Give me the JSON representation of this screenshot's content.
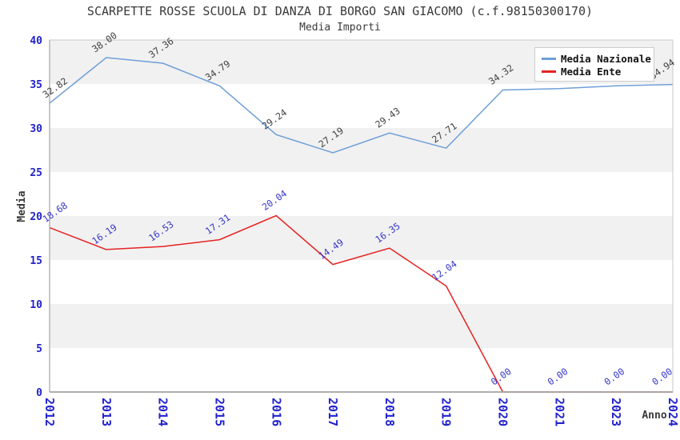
{
  "chart_data": {
    "type": "line",
    "title": "SCARPETTE ROSSE SCUOLA DI DANZA DI BORGO SAN GIACOMO (c.f.98150300170)",
    "subtitle": "Media Importi",
    "xlabel": "Anno",
    "ylabel": "Media",
    "ylim": [
      0,
      40
    ],
    "ytick_step": 5,
    "yticks": [
      0,
      5,
      10,
      15,
      20,
      25,
      30,
      35,
      40
    ],
    "categories": [
      "2012",
      "2013",
      "2014",
      "2015",
      "2016",
      "2017",
      "2018",
      "2019",
      "2020",
      "2021",
      "2023",
      "2024"
    ],
    "grid": "alternating-horizontal-bands",
    "legend_position": "top-right",
    "series": [
      {
        "name": "Media Nazionale",
        "color": "#6f9fd8",
        "label_color": "#3f3f3f",
        "values": [
          32.82,
          38.0,
          37.36,
          34.79,
          29.24,
          27.19,
          29.43,
          27.71,
          34.32,
          34.48,
          34.79,
          34.94
        ],
        "labels": [
          "32.82",
          "38.00",
          "37.36",
          "34.79",
          "29.24",
          "27.19",
          "29.43",
          "27.71",
          "34.32",
          null,
          null,
          "34.94"
        ]
      },
      {
        "name": "Media Ente",
        "color": "#e62222",
        "label_color": "#3737c8",
        "values": [
          18.68,
          16.19,
          16.53,
          17.31,
          20.04,
          14.49,
          16.35,
          12.04,
          0.0,
          0.0,
          0.0,
          0.0
        ],
        "labels": [
          "18.68",
          "16.19",
          "16.53",
          "17.31",
          "20.04",
          "14.49",
          "16.35",
          "12.04",
          "0.00",
          "0.00",
          "0.00",
          "0.00"
        ]
      }
    ],
    "colors": {
      "tick": "#2222cc",
      "band": "#f1f1f1",
      "axis": "#a5a5a5",
      "border": "#c9c9c9",
      "text": "#3a3a3a"
    }
  }
}
